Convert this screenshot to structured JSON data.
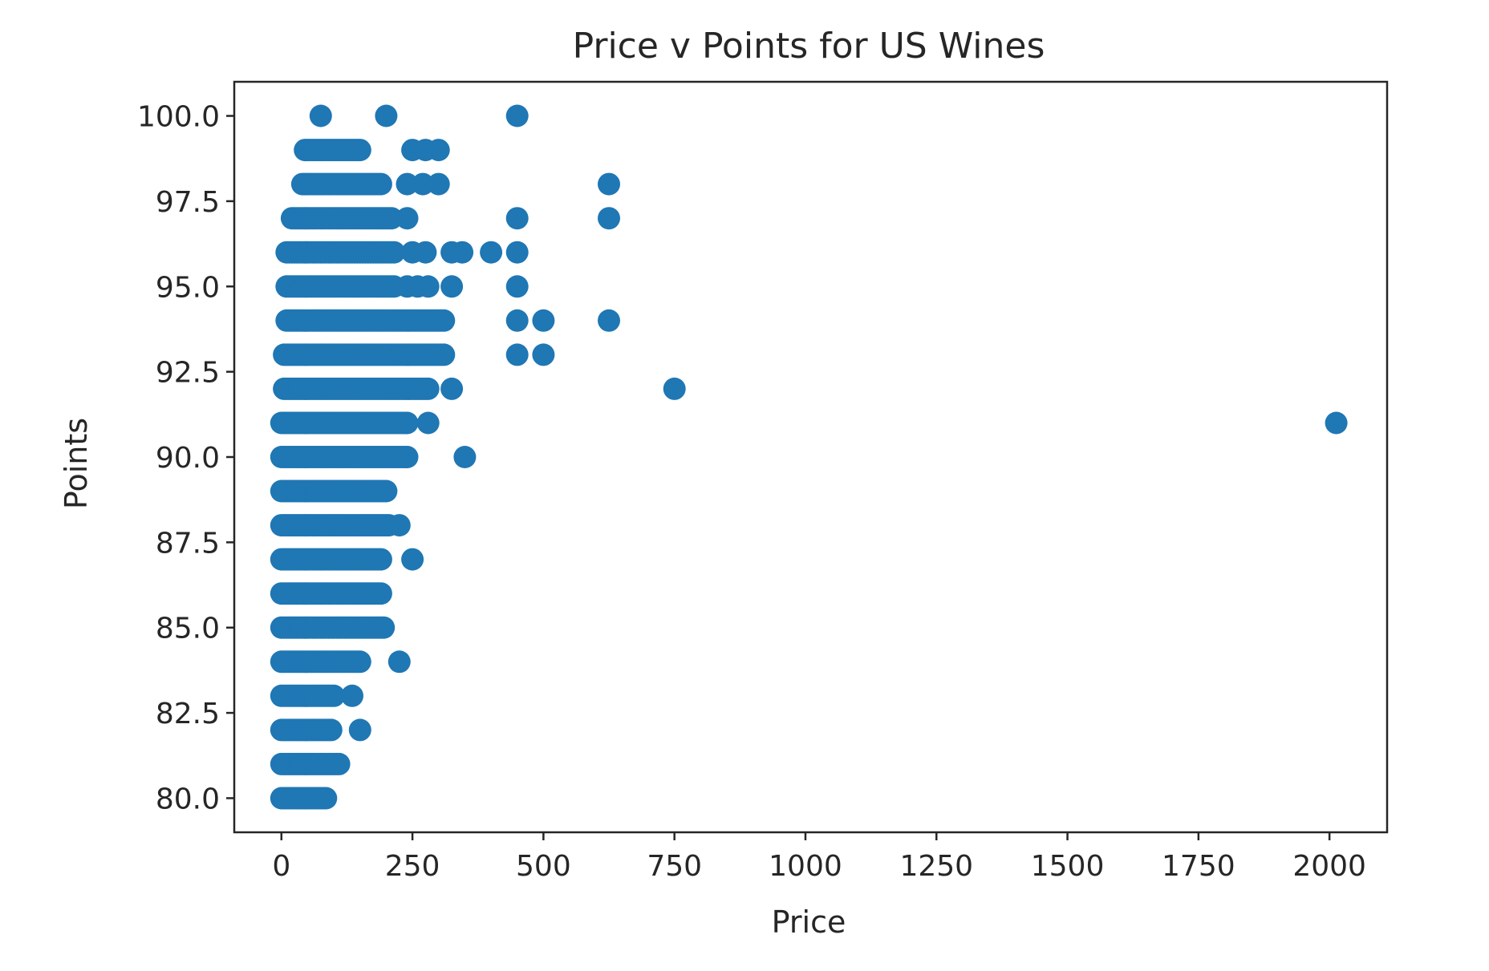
{
  "chart_data": {
    "type": "scatter",
    "title": "Price v Points for US Wines",
    "xlabel": "Price",
    "ylabel": "Points",
    "xlim": [
      -90,
      2110
    ],
    "ylim": [
      79.0,
      101.0
    ],
    "xticks": [
      0,
      250,
      500,
      750,
      1000,
      1250,
      1500,
      1750,
      2000
    ],
    "xtick_labels": [
      "0",
      "250",
      "500",
      "750",
      "1000",
      "1250",
      "1500",
      "1750",
      "2000"
    ],
    "yticks": [
      80.0,
      82.5,
      85.0,
      87.5,
      90.0,
      92.5,
      95.0,
      97.5,
      100.0
    ],
    "ytick_labels": [
      "80.0",
      "82.5",
      "85.0",
      "87.5",
      "90.0",
      "92.5",
      "95.0",
      "97.5",
      "100.0"
    ],
    "grid": false,
    "legend": "none",
    "marker_color": "#1f77b4",
    "dense_ranges": [
      {
        "points": 80,
        "min": 0,
        "max": 85
      },
      {
        "points": 81,
        "min": 0,
        "max": 110
      },
      {
        "points": 82,
        "min": 0,
        "max": 95
      },
      {
        "points": 83,
        "min": 0,
        "max": 100
      },
      {
        "points": 84,
        "min": 0,
        "max": 150
      },
      {
        "points": 85,
        "min": 0,
        "max": 195
      },
      {
        "points": 86,
        "min": 0,
        "max": 190
      },
      {
        "points": 87,
        "min": 0,
        "max": 190
      },
      {
        "points": 88,
        "min": 0,
        "max": 205
      },
      {
        "points": 89,
        "min": 0,
        "max": 200
      },
      {
        "points": 90,
        "min": 0,
        "max": 240
      },
      {
        "points": 91,
        "min": 0,
        "max": 240
      },
      {
        "points": 92,
        "min": 5,
        "max": 280
      },
      {
        "points": 93,
        "min": 5,
        "max": 310
      },
      {
        "points": 94,
        "min": 10,
        "max": 310
      },
      {
        "points": 95,
        "min": 10,
        "max": 215
      },
      {
        "points": 96,
        "min": 10,
        "max": 215
      },
      {
        "points": 97,
        "min": 20,
        "max": 210
      },
      {
        "points": 98,
        "min": 40,
        "max": 190
      },
      {
        "points": 99,
        "min": 45,
        "max": 150
      }
    ],
    "outliers": [
      {
        "x": 75,
        "y": 100
      },
      {
        "x": 200,
        "y": 100
      },
      {
        "x": 450,
        "y": 100
      },
      {
        "x": 250,
        "y": 99
      },
      {
        "x": 275,
        "y": 99
      },
      {
        "x": 300,
        "y": 99
      },
      {
        "x": 240,
        "y": 98
      },
      {
        "x": 270,
        "y": 98
      },
      {
        "x": 300,
        "y": 98
      },
      {
        "x": 625,
        "y": 98
      },
      {
        "x": 240,
        "y": 97
      },
      {
        "x": 450,
        "y": 97
      },
      {
        "x": 625,
        "y": 97
      },
      {
        "x": 250,
        "y": 96
      },
      {
        "x": 275,
        "y": 96
      },
      {
        "x": 325,
        "y": 96
      },
      {
        "x": 345,
        "y": 96
      },
      {
        "x": 400,
        "y": 96
      },
      {
        "x": 450,
        "y": 96
      },
      {
        "x": 240,
        "y": 95
      },
      {
        "x": 260,
        "y": 95
      },
      {
        "x": 280,
        "y": 95
      },
      {
        "x": 325,
        "y": 95
      },
      {
        "x": 450,
        "y": 95
      },
      {
        "x": 450,
        "y": 94
      },
      {
        "x": 500,
        "y": 94
      },
      {
        "x": 625,
        "y": 94
      },
      {
        "x": 450,
        "y": 93
      },
      {
        "x": 500,
        "y": 93
      },
      {
        "x": 325,
        "y": 92
      },
      {
        "x": 750,
        "y": 92
      },
      {
        "x": 280,
        "y": 91
      },
      {
        "x": 2013,
        "y": 91
      },
      {
        "x": 350,
        "y": 90
      },
      {
        "x": 225,
        "y": 88
      },
      {
        "x": 250,
        "y": 87
      },
      {
        "x": 225,
        "y": 84
      },
      {
        "x": 135,
        "y": 83
      },
      {
        "x": 150,
        "y": 82
      }
    ]
  }
}
